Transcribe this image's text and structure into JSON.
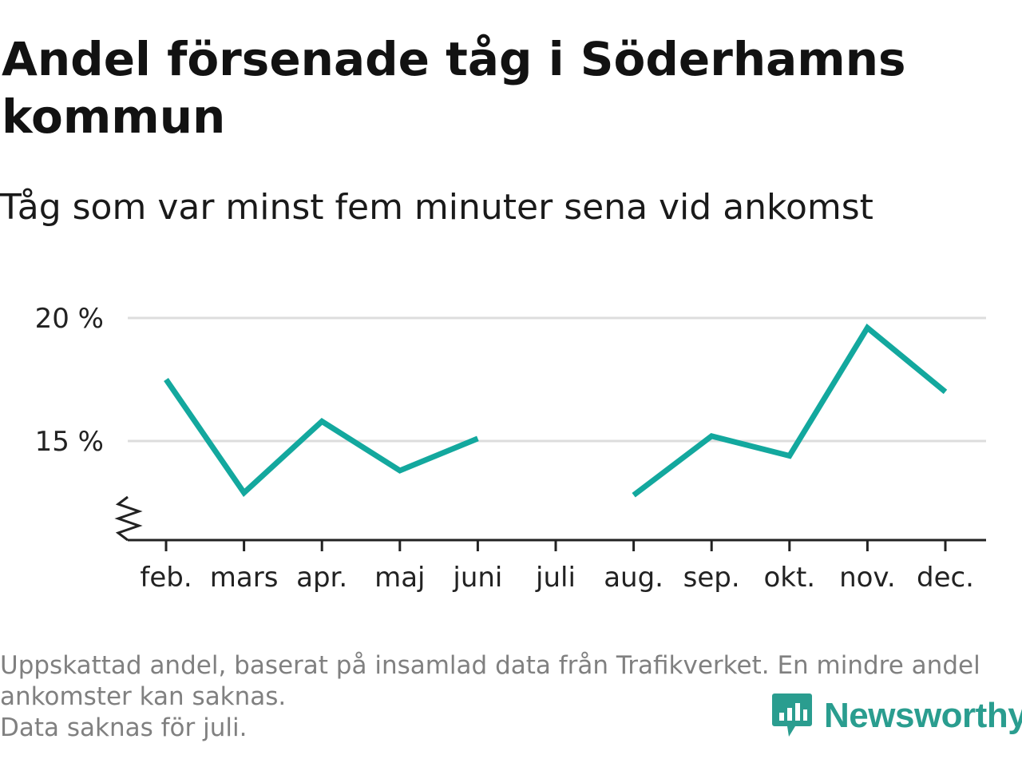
{
  "title": "Andel försenade tåg i Söderhamns kommun",
  "subtitle": "Tåg som var minst fem minuter sena vid ankomst",
  "footnote": {
    "lines": [
      "Uppskattad andel, baserat på insamlad data från Trafikverket. En mindre andel",
      "ankomster kan saknas.",
      "Data saknas för juli."
    ]
  },
  "brand": {
    "name": "Newsworthy"
  },
  "colors": {
    "line": "#13a89e",
    "grid": "#dddddd",
    "axis": "#222222",
    "brand": "#2a9d8f"
  },
  "chart_data": {
    "type": "line",
    "title": "Andel försenade tåg i Söderhamns kommun",
    "subtitle": "Tåg som var minst fem minuter sena vid ankomst",
    "categories": [
      "feb.",
      "mars",
      "apr.",
      "maj",
      "juni",
      "juli",
      "aug.",
      "sep.",
      "okt.",
      "nov.",
      "dec."
    ],
    "series": [
      {
        "values": [
          17.5,
          12.9,
          15.8,
          13.8,
          15.1,
          null,
          12.8,
          15.2,
          14.4,
          19.6,
          17.0
        ]
      }
    ],
    "y_ticks": [
      15,
      20
    ],
    "y_tick_labels": [
      "15 %",
      "20 %"
    ],
    "ylim": [
      11,
      20
    ],
    "y_axis_break": true,
    "grid": true,
    "legend": "none"
  }
}
